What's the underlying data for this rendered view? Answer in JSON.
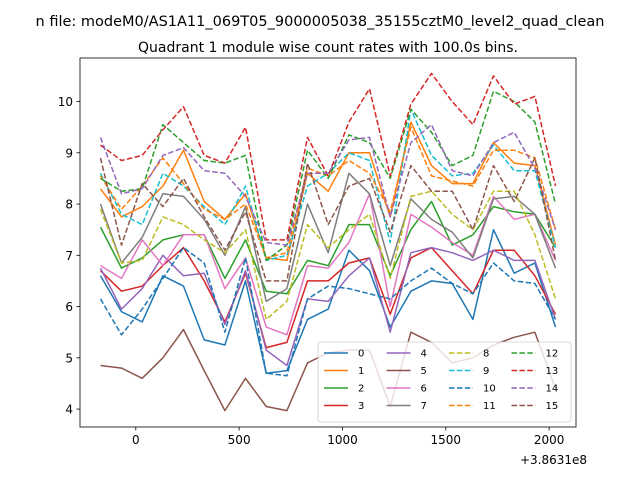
{
  "chart_data": {
    "type": "line",
    "suptitle": "n file: modeM0/AS1A11_069T05_9000005038_35155cztM0_level2_quad_clean",
    "title": "Quadrant 1 module wise count rates with 100.0s bins.",
    "xlabel": "",
    "ylabel": "",
    "x_offset_label": "+3.8631e8",
    "xlim": [
      -270,
      2130
    ],
    "ylim": [
      3.65,
      10.85
    ],
    "xticks": [
      0,
      500,
      1000,
      1500,
      2000
    ],
    "yticks": [
      4,
      5,
      6,
      7,
      8,
      9,
      10
    ],
    "grid": false,
    "legend_position": "lower-right",
    "x": [
      -171,
      -69,
      31,
      131,
      231,
      331,
      431,
      531,
      631,
      731,
      831,
      931,
      1031,
      1131,
      1231,
      1331,
      1431,
      1531,
      1631,
      1731,
      1831,
      1931,
      2031
    ],
    "series": [
      {
        "name": "0",
        "color": "#1f77b4",
        "style": "solid",
        "values": [
          6.6,
          5.9,
          5.7,
          6.6,
          6.4,
          5.35,
          5.25,
          6.5,
          4.7,
          4.75,
          5.75,
          5.95,
          7.1,
          6.7,
          5.6,
          6.3,
          6.5,
          6.45,
          5.75,
          7.5,
          6.65,
          6.85,
          5.6
        ]
      },
      {
        "name": "1",
        "color": "#ff7f0e",
        "style": "solid",
        "values": [
          8.3,
          7.75,
          7.95,
          8.35,
          9.05,
          8.05,
          7.7,
          8.2,
          6.95,
          6.9,
          8.6,
          8.25,
          9.0,
          9.0,
          7.75,
          9.6,
          8.75,
          8.4,
          8.4,
          9.2,
          8.8,
          8.75,
          7.2
        ]
      },
      {
        "name": "2",
        "color": "#2ca02c",
        "style": "solid",
        "values": [
          7.55,
          6.75,
          6.95,
          7.3,
          7.4,
          7.4,
          6.55,
          7.3,
          6.3,
          6.25,
          6.9,
          6.8,
          7.6,
          7.6,
          6.6,
          7.5,
          8.05,
          7.2,
          7.4,
          7.95,
          7.85,
          7.8,
          7.15
        ]
      },
      {
        "name": "3",
        "color": "#d62728",
        "style": "solid",
        "values": [
          6.7,
          6.3,
          6.4,
          6.8,
          7.15,
          6.5,
          5.7,
          6.65,
          5.2,
          5.3,
          6.5,
          6.5,
          6.85,
          6.95,
          5.85,
          6.95,
          7.15,
          6.7,
          6.25,
          7.1,
          7.1,
          6.6,
          5.85
        ]
      },
      {
        "name": "4",
        "color": "#9467bd",
        "style": "solid",
        "values": [
          6.75,
          5.95,
          6.35,
          7.0,
          6.6,
          6.65,
          5.65,
          6.7,
          5.15,
          4.85,
          6.15,
          6.1,
          6.6,
          6.95,
          5.5,
          7.05,
          7.15,
          7.05,
          6.9,
          7.1,
          6.9,
          6.9,
          5.75
        ]
      },
      {
        "name": "5",
        "color": "#8c564b",
        "style": "solid",
        "values": [
          4.85,
          4.8,
          4.6,
          5.0,
          5.55,
          4.75,
          3.97,
          4.6,
          4.05,
          3.97,
          4.9,
          5.1,
          5.15,
          5.15,
          4.05,
          5.5,
          5.3,
          4.9,
          5.0,
          5.25,
          5.4,
          5.5,
          4.4
        ]
      },
      {
        "name": "6",
        "color": "#e377c2",
        "style": "solid",
        "values": [
          6.8,
          6.55,
          7.3,
          6.8,
          7.4,
          7.4,
          6.35,
          6.95,
          5.6,
          5.45,
          6.8,
          6.75,
          7.25,
          8.2,
          6.0,
          7.8,
          7.55,
          7.25,
          7.0,
          8.15,
          7.7,
          7.8,
          6.9
        ]
      },
      {
        "name": "7",
        "color": "#7f7f7f",
        "style": "solid",
        "values": [
          8.0,
          6.85,
          7.35,
          8.2,
          8.15,
          7.7,
          7.0,
          7.95,
          6.1,
          6.35,
          8.0,
          7.05,
          8.6,
          8.2,
          6.8,
          8.1,
          7.7,
          7.45,
          6.95,
          8.1,
          8.15,
          7.8,
          6.75
        ]
      },
      {
        "name": "8",
        "color": "#bcbd22",
        "style": "dashed",
        "values": [
          7.9,
          6.85,
          6.9,
          7.75,
          7.6,
          7.3,
          7.05,
          7.5,
          5.75,
          6.1,
          7.6,
          7.15,
          7.5,
          7.8,
          6.55,
          8.15,
          8.25,
          7.8,
          7.5,
          8.25,
          8.25,
          7.4,
          6.15
        ]
      },
      {
        "name": "9",
        "color": "#17becf",
        "style": "dashed",
        "values": [
          8.6,
          7.8,
          7.6,
          8.6,
          8.35,
          7.95,
          7.6,
          8.35,
          6.9,
          7.0,
          8.35,
          8.6,
          9.0,
          8.85,
          7.25,
          9.85,
          8.95,
          8.55,
          8.6,
          9.15,
          8.65,
          8.65,
          7.15
        ]
      },
      {
        "name": "10",
        "color": "#1f77b4",
        "style": "dashed",
        "values": [
          6.15,
          5.45,
          5.95,
          6.55,
          7.15,
          6.85,
          5.5,
          6.95,
          4.7,
          4.65,
          6.15,
          6.4,
          6.35,
          6.25,
          6.15,
          6.5,
          6.75,
          6.45,
          6.25,
          6.85,
          6.5,
          6.45,
          5.75
        ]
      },
      {
        "name": "11",
        "color": "#ff7f0e",
        "style": "dashed",
        "values": [
          8.55,
          7.9,
          8.35,
          8.9,
          8.4,
          7.9,
          7.7,
          8.0,
          6.95,
          7.05,
          8.7,
          8.55,
          8.85,
          8.6,
          7.85,
          9.5,
          8.55,
          8.45,
          8.35,
          9.05,
          9.05,
          8.9,
          7.5
        ]
      },
      {
        "name": "12",
        "color": "#2ca02c",
        "style": "dashed",
        "values": [
          8.5,
          8.25,
          8.3,
          9.55,
          9.2,
          8.85,
          8.8,
          8.95,
          6.9,
          7.2,
          9.05,
          8.5,
          9.35,
          9.2,
          8.5,
          9.85,
          9.4,
          8.75,
          8.95,
          10.2,
          10.0,
          9.6,
          8.0
        ]
      },
      {
        "name": "13",
        "color": "#d62728",
        "style": "dashed",
        "values": [
          9.15,
          8.85,
          8.95,
          9.45,
          9.9,
          8.95,
          8.8,
          9.5,
          7.3,
          7.3,
          9.3,
          8.55,
          9.6,
          10.25,
          8.55,
          9.95,
          10.55,
          10.0,
          9.55,
          10.5,
          9.95,
          10.1,
          8.35
        ]
      },
      {
        "name": "14",
        "color": "#9467bd",
        "style": "dashed",
        "values": [
          9.3,
          8.2,
          8.3,
          8.95,
          9.1,
          8.65,
          8.6,
          8.15,
          7.25,
          7.2,
          8.6,
          8.6,
          9.25,
          9.3,
          7.75,
          9.2,
          9.55,
          8.65,
          8.55,
          9.2,
          9.4,
          8.7,
          7.5
        ]
      },
      {
        "name": "15",
        "color": "#8c564b",
        "style": "dashed",
        "values": [
          8.9,
          7.2,
          8.4,
          7.95,
          8.5,
          7.75,
          7.1,
          7.85,
          6.5,
          6.5,
          8.8,
          7.6,
          8.35,
          8.5,
          7.45,
          8.75,
          8.25,
          8.25,
          7.5,
          8.75,
          8.05,
          8.9,
          6.9
        ]
      }
    ]
  }
}
